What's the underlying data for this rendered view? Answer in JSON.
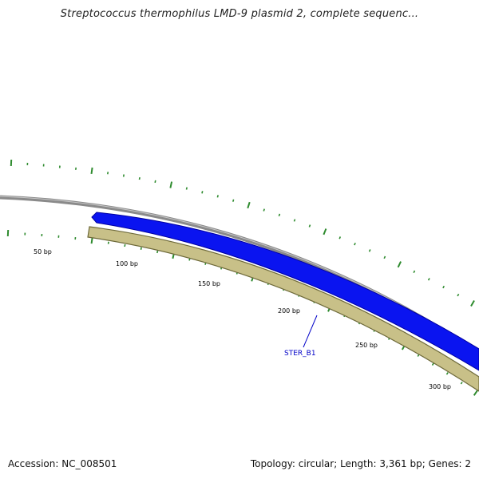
{
  "title": "Streptococcus thermophilus LMD-9 plasmid 2, complete sequenc...",
  "accession": "Accession: NC_008501",
  "summary": "Topology: circular; Length: 3,361 bp; Genes: 2",
  "map": {
    "colors": {
      "backbone": "#8a8a8a",
      "forward_gene": "#0a14f0",
      "forward_gene_edge": "#0000a0",
      "reverse_gene": "#c8c088",
      "reverse_gene_edge": "#6e6a3a",
      "ticks": "#2e8b2e",
      "gene_label": "#0000c8"
    },
    "tick_labels": [
      "50 bp",
      "100 bp",
      "150 bp",
      "200 bp",
      "250 bp",
      "300 bp"
    ],
    "gene_label": "STER_B1"
  }
}
